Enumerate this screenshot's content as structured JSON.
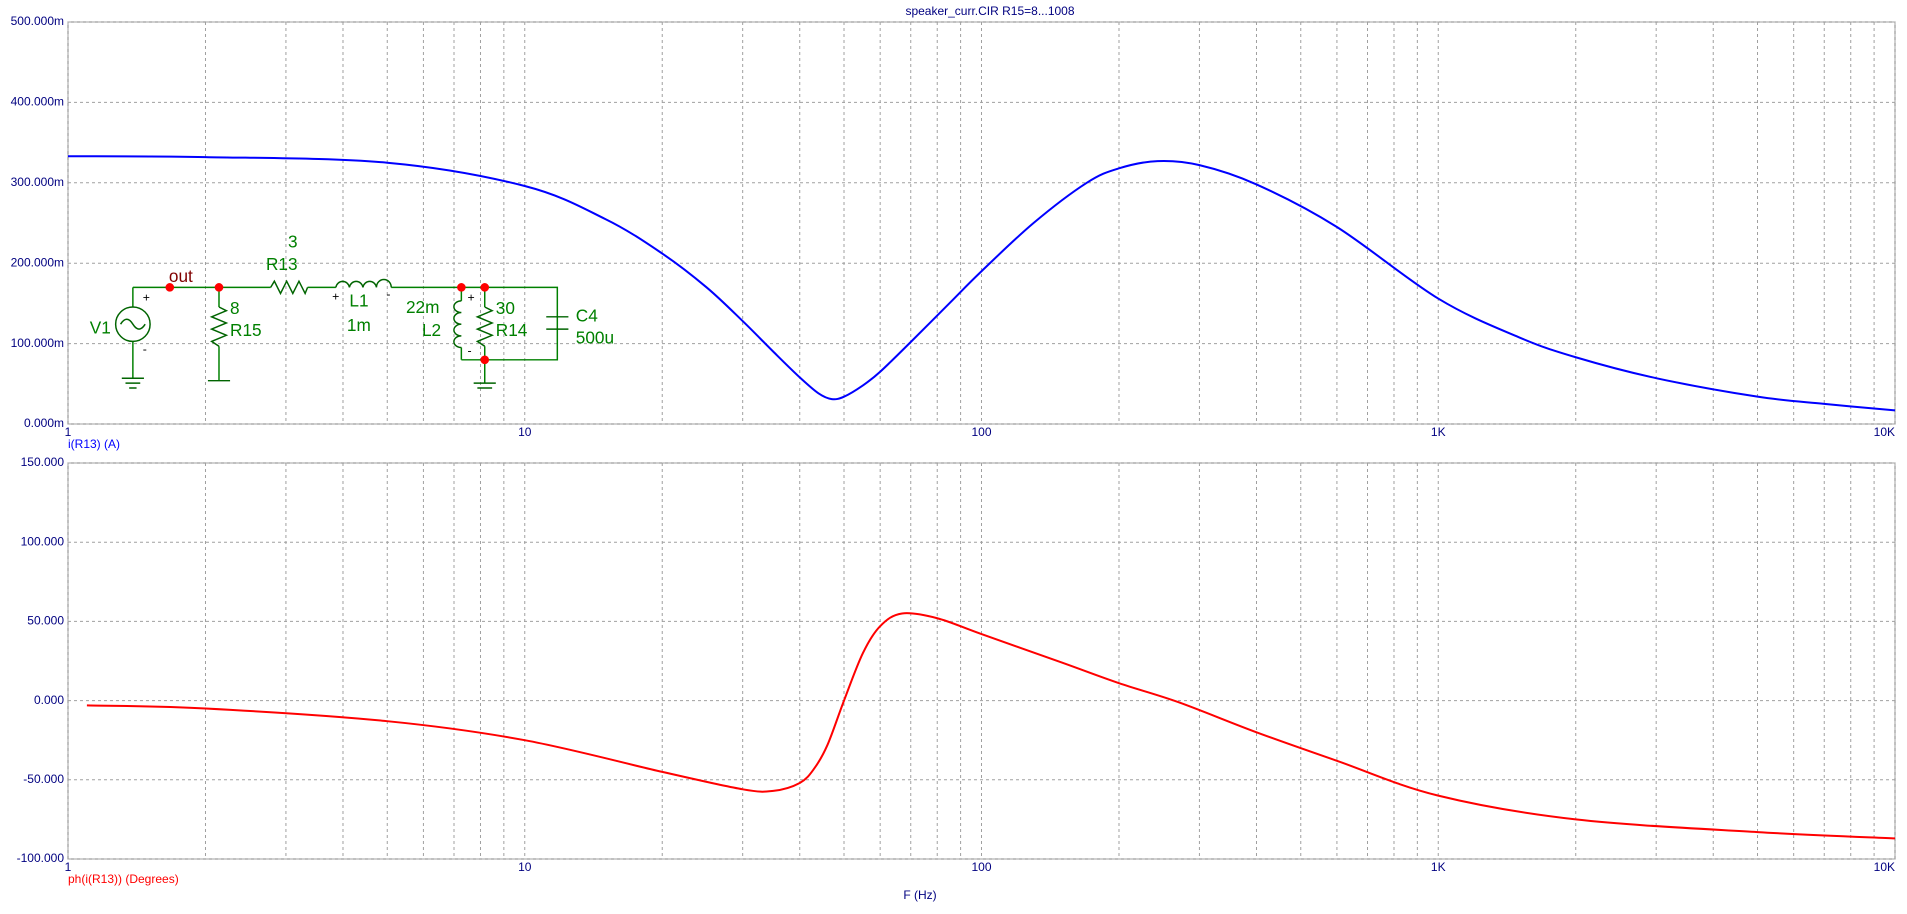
{
  "chart_data": [
    {
      "type": "line",
      "title": "speaker_curr.CIR R15=8...1008",
      "xscale": "log",
      "grid": true,
      "xlim": [
        1,
        10000
      ],
      "xticks": [
        1,
        10,
        100,
        {
          "value": 1000,
          "label": "1K"
        },
        {
          "value": 10000,
          "label": "10K"
        }
      ],
      "xminor": [
        2,
        3,
        4,
        5,
        6,
        7,
        8,
        9,
        20,
        30,
        40,
        50,
        60,
        70,
        80,
        90,
        200,
        300,
        400,
        500,
        600,
        700,
        800,
        900,
        2000,
        3000,
        4000,
        5000,
        6000,
        7000,
        8000,
        9000
      ],
      "ylim": [
        0,
        0.5
      ],
      "yticks": [
        {
          "value": 0,
          "label": "0.000m"
        },
        {
          "value": 0.1,
          "label": "100.000m"
        },
        {
          "value": 0.2,
          "label": "200.000m"
        },
        {
          "value": 0.3,
          "label": "300.000m"
        },
        {
          "value": 0.4,
          "label": "400.000m"
        },
        {
          "value": 0.5,
          "label": "500.000m"
        }
      ],
      "x": [
        1,
        2,
        5,
        10,
        15,
        20,
        25,
        30,
        35,
        40,
        44,
        47,
        50,
        55,
        60,
        70,
        85,
        100,
        130,
        170,
        200,
        243,
        300,
        400,
        600,
        1000,
        1500,
        2000,
        3000,
        5000,
        7000,
        10000
      ],
      "series": [
        {
          "name": "i(R13) (A)",
          "color": "#0000ff",
          "values": [
            0.333,
            0.332,
            0.325,
            0.296,
            0.255,
            0.212,
            0.17,
            0.128,
            0.09,
            0.058,
            0.038,
            0.031,
            0.034,
            0.048,
            0.065,
            0.102,
            0.15,
            0.19,
            0.25,
            0.3,
            0.318,
            0.327,
            0.322,
            0.298,
            0.245,
            0.156,
            0.108,
            0.083,
            0.057,
            0.034,
            0.025,
            0.017
          ]
        }
      ]
    },
    {
      "type": "line",
      "xlabel": "F (Hz)",
      "xscale": "log",
      "grid": true,
      "xlim": [
        1,
        10000
      ],
      "xticks": [
        1,
        10,
        100,
        {
          "value": 1000,
          "label": "1K"
        },
        {
          "value": 10000,
          "label": "10K"
        }
      ],
      "xminor": [
        2,
        3,
        4,
        5,
        6,
        7,
        8,
        9,
        20,
        30,
        40,
        50,
        60,
        70,
        80,
        90,
        200,
        300,
        400,
        500,
        600,
        700,
        800,
        900,
        2000,
        3000,
        4000,
        5000,
        6000,
        7000,
        8000,
        9000
      ],
      "ylim": [
        -100,
        150
      ],
      "yticks": [
        {
          "value": -100,
          "label": "-100.000"
        },
        {
          "value": -50,
          "label": "-50.000"
        },
        {
          "value": 0,
          "label": "0.000"
        },
        {
          "value": 50,
          "label": "50.000"
        },
        {
          "value": 100,
          "label": "100.000"
        },
        {
          "value": 150,
          "label": "150.000"
        }
      ],
      "x": [
        1.1,
        2,
        5,
        10,
        20,
        30,
        35,
        40,
        43,
        46,
        50,
        55,
        60,
        67,
        80,
        100,
        150,
        200,
        270,
        400,
        600,
        1000,
        2000,
        5000,
        10000
      ],
      "series": [
        {
          "name": "ph(i(R13)) (Degrees)",
          "color": "#ff0000",
          "values": [
            -3,
            -5,
            -13,
            -25,
            -45,
            -56,
            -57,
            -52,
            -43,
            -28,
            0,
            30,
            47,
            55,
            52,
            42,
            24,
            11,
            -1,
            -20,
            -38,
            -60,
            -75,
            -83,
            -87
          ]
        }
      ]
    }
  ],
  "schematic": {
    "labels": [
      "out",
      "3",
      "R13",
      "8",
      "R15",
      "V1",
      "L1",
      "1m",
      "22m",
      "L2",
      "30",
      "R14",
      "C4",
      "500u"
    ],
    "plus": "+",
    "minus": "-"
  }
}
